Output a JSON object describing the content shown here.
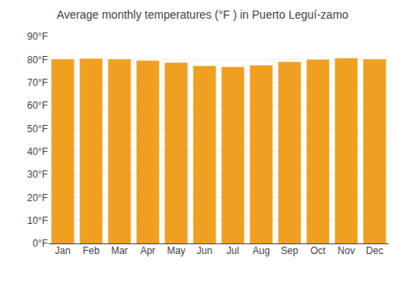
{
  "chart_data": {
    "type": "bar",
    "title": "Average monthly temperatures (°F ) in Puerto Leguí-zamo",
    "categories": [
      "Jan",
      "Feb",
      "Mar",
      "Apr",
      "May",
      "Jun",
      "Jul",
      "Aug",
      "Sep",
      "Oct",
      "Nov",
      "Dec"
    ],
    "values": [
      80.1,
      80.4,
      80.1,
      79.5,
      78.6,
      77.2,
      76.8,
      77.5,
      79.0,
      79.9,
      80.6,
      80.1
    ],
    "color": "#F0A020",
    "ylim": [
      0,
      90
    ],
    "yticks": [
      {
        "value": 0,
        "label": "0°F"
      },
      {
        "value": 10,
        "label": "10°F"
      },
      {
        "value": 20,
        "label": "20°F"
      },
      {
        "value": 30,
        "label": "30°F"
      },
      {
        "value": 40,
        "label": "40°F"
      },
      {
        "value": 50,
        "label": "50°F"
      },
      {
        "value": 60,
        "label": "60°F"
      },
      {
        "value": 70,
        "label": "70°F"
      },
      {
        "value": 80,
        "label": "80°F"
      },
      {
        "value": 90,
        "label": "90°F"
      }
    ],
    "grid": true
  }
}
